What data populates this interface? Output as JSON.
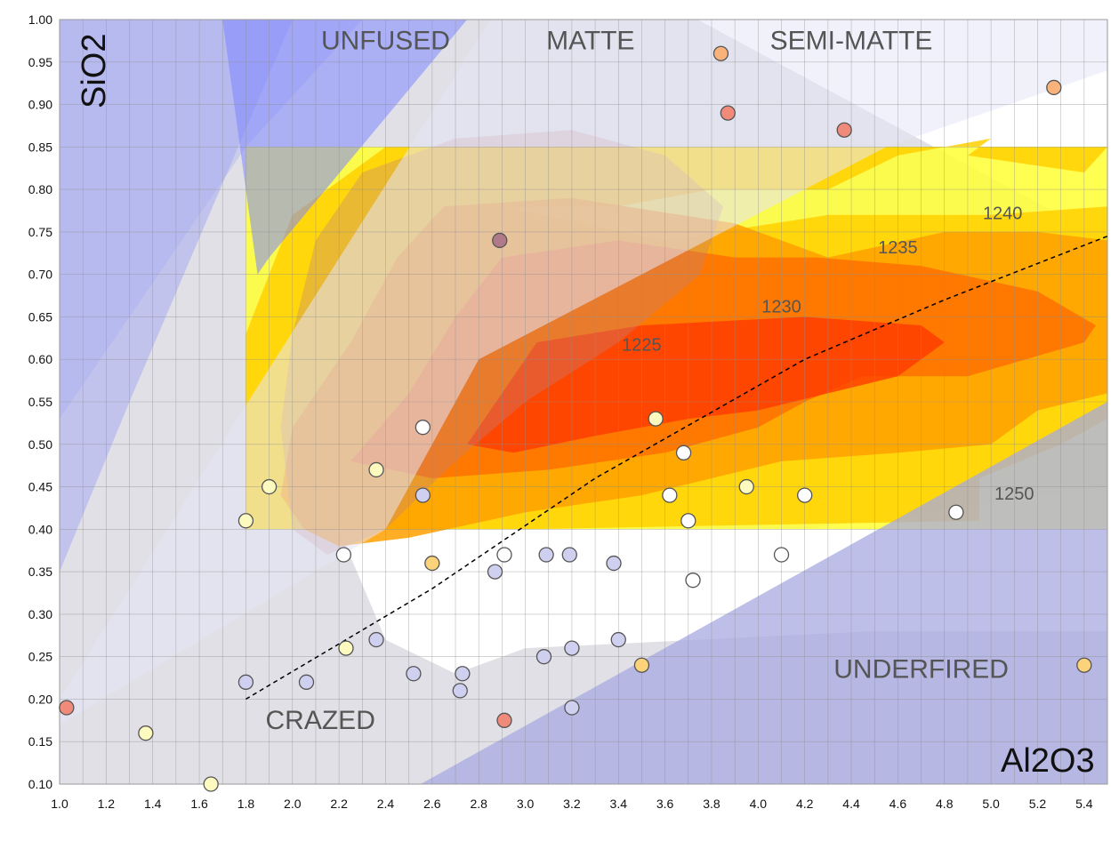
{
  "chart_data": {
    "type": "scatter",
    "xlabel": "Al2O3",
    "ylabel": "SiO2",
    "xlim": [
      1.0,
      5.5
    ],
    "ylim": [
      0.1,
      1.0
    ],
    "x_ticks": [
      "1.0",
      "1.2",
      "1.4",
      "1.6",
      "1.8",
      "2.0",
      "2.2",
      "2.4",
      "2.6",
      "2.8",
      "3.0",
      "3.2",
      "3.4",
      "3.6",
      "3.8",
      "4.0",
      "4.2",
      "4.4",
      "4.6",
      "4.8",
      "5.0",
      "5.2",
      "5.4"
    ],
    "y_ticks": [
      "0.10",
      "0.15",
      "0.20",
      "0.25",
      "0.30",
      "0.35",
      "0.40",
      "0.45",
      "0.50",
      "0.55",
      "0.60",
      "0.65",
      "0.70",
      "0.75",
      "0.80",
      "0.85",
      "0.90",
      "0.95",
      "1.00"
    ],
    "grid": true,
    "regions": [
      {
        "label": "UNFUSED",
        "x": 2.4,
        "y": 0.965
      },
      {
        "label": "MATTE",
        "x": 3.28,
        "y": 0.965
      },
      {
        "label": "SEMI-MATTE",
        "x": 4.4,
        "y": 0.965
      },
      {
        "label": "UNDERFIRED",
        "x": 4.7,
        "y": 0.225
      },
      {
        "label": "CRAZED",
        "x": 2.12,
        "y": 0.165
      }
    ],
    "contour_labels": [
      {
        "label": "1225",
        "x": 3.5,
        "y": 0.61
      },
      {
        "label": "1230",
        "x": 4.1,
        "y": 0.655
      },
      {
        "label": "1235",
        "x": 4.6,
        "y": 0.725
      },
      {
        "label": "1240",
        "x": 5.05,
        "y": 0.765
      },
      {
        "label": "1250",
        "x": 5.1,
        "y": 0.435
      }
    ],
    "trend_line": {
      "x": [
        1.8,
        2.6,
        3.3,
        4.2,
        4.8,
        5.5
      ],
      "y": [
        0.2,
        0.33,
        0.46,
        0.6,
        0.67,
        0.745
      ]
    },
    "colors": {
      "red": "#f08a7a",
      "orange": "#f8b27a",
      "mauve": "#b07a88",
      "amber": "#fcd27a",
      "pale-yellow": "#fdfac0",
      "white": "#ffffff",
      "lavender": "#cfd0f0"
    },
    "points": [
      {
        "x": 1.03,
        "y": 0.19,
        "color": "red"
      },
      {
        "x": 1.37,
        "y": 0.16,
        "color": "pale-yellow"
      },
      {
        "x": 1.65,
        "y": 0.1,
        "color": "pale-yellow"
      },
      {
        "x": 1.8,
        "y": 0.41,
        "color": "pale-yellow"
      },
      {
        "x": 1.9,
        "y": 0.45,
        "color": "pale-yellow"
      },
      {
        "x": 1.8,
        "y": 0.22,
        "color": "lavender"
      },
      {
        "x": 2.06,
        "y": 0.22,
        "color": "lavender"
      },
      {
        "x": 2.22,
        "y": 0.37,
        "color": "white"
      },
      {
        "x": 2.23,
        "y": 0.26,
        "color": "pale-yellow"
      },
      {
        "x": 2.36,
        "y": 0.47,
        "color": "pale-yellow"
      },
      {
        "x": 2.36,
        "y": 0.27,
        "color": "lavender"
      },
      {
        "x": 2.52,
        "y": 0.23,
        "color": "lavender"
      },
      {
        "x": 2.56,
        "y": 0.52,
        "color": "white"
      },
      {
        "x": 2.56,
        "y": 0.44,
        "color": "lavender"
      },
      {
        "x": 2.6,
        "y": 0.36,
        "color": "amber"
      },
      {
        "x": 2.72,
        "y": 0.21,
        "color": "lavender"
      },
      {
        "x": 2.73,
        "y": 0.23,
        "color": "lavender"
      },
      {
        "x": 2.87,
        "y": 0.35,
        "color": "lavender"
      },
      {
        "x": 2.89,
        "y": 0.74,
        "color": "mauve"
      },
      {
        "x": 2.91,
        "y": 0.37,
        "color": "white"
      },
      {
        "x": 2.91,
        "y": 0.175,
        "color": "red"
      },
      {
        "x": 3.08,
        "y": 0.25,
        "color": "lavender"
      },
      {
        "x": 3.09,
        "y": 0.37,
        "color": "lavender"
      },
      {
        "x": 3.19,
        "y": 0.37,
        "color": "lavender"
      },
      {
        "x": 3.2,
        "y": 0.26,
        "color": "lavender"
      },
      {
        "x": 3.2,
        "y": 0.19,
        "color": "lavender"
      },
      {
        "x": 3.38,
        "y": 0.36,
        "color": "lavender"
      },
      {
        "x": 3.4,
        "y": 0.27,
        "color": "lavender"
      },
      {
        "x": 3.5,
        "y": 0.24,
        "color": "amber"
      },
      {
        "x": 3.56,
        "y": 0.53,
        "color": "pale-yellow"
      },
      {
        "x": 3.62,
        "y": 0.44,
        "color": "white"
      },
      {
        "x": 3.68,
        "y": 0.49,
        "color": "white"
      },
      {
        "x": 3.7,
        "y": 0.41,
        "color": "white"
      },
      {
        "x": 3.72,
        "y": 0.34,
        "color": "white"
      },
      {
        "x": 3.84,
        "y": 0.96,
        "color": "orange"
      },
      {
        "x": 3.87,
        "y": 0.89,
        "color": "red"
      },
      {
        "x": 3.95,
        "y": 0.45,
        "color": "pale-yellow"
      },
      {
        "x": 4.1,
        "y": 0.37,
        "color": "white"
      },
      {
        "x": 4.2,
        "y": 0.44,
        "color": "white"
      },
      {
        "x": 4.37,
        "y": 0.87,
        "color": "red"
      },
      {
        "x": 4.85,
        "y": 0.42,
        "color": "white"
      },
      {
        "x": 5.27,
        "y": 0.92,
        "color": "orange"
      },
      {
        "x": 5.4,
        "y": 0.24,
        "color": "amber"
      }
    ]
  }
}
